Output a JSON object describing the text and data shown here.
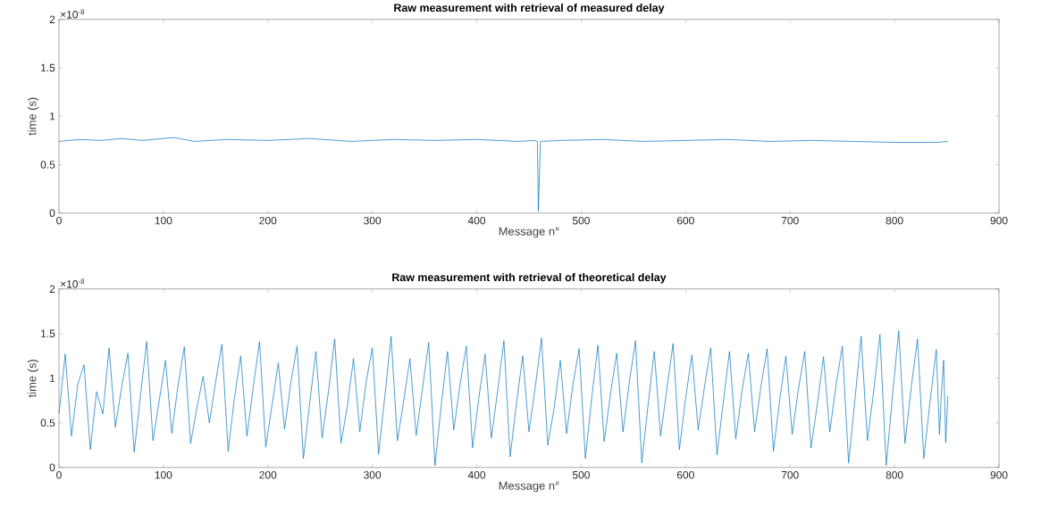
{
  "chart_data": [
    {
      "type": "line",
      "title": "Raw measurement with retrieval of measured delay",
      "xlabel": "Message n°",
      "ylabel": "time (s)",
      "annotations": [
        "×10$^{-8}$"
      ],
      "x": [
        0,
        20,
        40,
        60,
        80,
        110,
        130,
        160,
        200,
        240,
        280,
        320,
        360,
        400,
        440,
        455,
        458,
        459,
        461,
        480,
        520,
        560,
        600,
        640,
        680,
        720,
        760,
        800,
        840,
        851
      ],
      "series": [
        {
          "color": "#0072bd",
          "values": [
            0.74,
            0.76,
            0.75,
            0.77,
            0.75,
            0.78,
            0.74,
            0.76,
            0.75,
            0.77,
            0.74,
            0.76,
            0.75,
            0.76,
            0.74,
            0.75,
            0.74,
            0.02,
            0.74,
            0.75,
            0.76,
            0.74,
            0.75,
            0.76,
            0.74,
            0.75,
            0.74,
            0.73,
            0.73,
            0.74
          ]
        }
      ],
      "xlim": [
        0,
        900
      ],
      "xticks": [
        0,
        100,
        200,
        300,
        400,
        500,
        600,
        700,
        800,
        900
      ],
      "ylim": [
        0,
        2
      ],
      "yticks": [
        0,
        0.5,
        1,
        1.5,
        2
      ]
    },
    {
      "type": "line",
      "title": "Raw measurement with retrieval of theoretical delay",
      "xlabel": "Message n°",
      "ylabel": "time (s)",
      "annotations": [
        "×10$^{-8}$"
      ],
      "x": [
        0,
        6,
        12,
        18,
        24,
        30,
        36,
        42,
        48,
        54,
        60,
        66,
        72,
        78,
        84,
        90,
        96,
        102,
        108,
        114,
        120,
        126,
        132,
        138,
        144,
        150,
        156,
        162,
        168,
        174,
        180,
        186,
        192,
        198,
        204,
        210,
        216,
        222,
        228,
        234,
        240,
        246,
        252,
        258,
        264,
        270,
        276,
        282,
        288,
        294,
        300,
        306,
        312,
        318,
        324,
        330,
        336,
        342,
        348,
        354,
        360,
        366,
        372,
        378,
        384,
        390,
        396,
        402,
        408,
        414,
        420,
        426,
        432,
        438,
        444,
        450,
        456,
        462,
        468,
        474,
        480,
        486,
        492,
        498,
        504,
        510,
        516,
        522,
        528,
        534,
        540,
        546,
        552,
        558,
        564,
        570,
        576,
        582,
        588,
        594,
        600,
        606,
        612,
        618,
        624,
        630,
        636,
        642,
        648,
        654,
        660,
        666,
        672,
        678,
        684,
        690,
        696,
        702,
        708,
        714,
        720,
        726,
        732,
        738,
        744,
        750,
        756,
        762,
        768,
        774,
        780,
        786,
        792,
        798,
        804,
        810,
        816,
        822,
        828,
        834,
        840,
        843,
        845,
        847,
        849,
        851
      ],
      "series": [
        {
          "color": "#0072bd",
          "values": [
            0.6,
            1.27,
            0.35,
            0.93,
            1.15,
            0.2,
            0.85,
            0.6,
            1.34,
            0.45,
            0.9,
            1.28,
            0.17,
            0.8,
            1.41,
            0.3,
            0.75,
            1.2,
            0.38,
            0.92,
            1.35,
            0.27,
            0.66,
            1.02,
            0.5,
            0.96,
            1.38,
            0.18,
            0.78,
            1.25,
            0.35,
            0.9,
            1.41,
            0.23,
            0.7,
            1.17,
            0.43,
            0.95,
            1.36,
            0.1,
            0.72,
            1.3,
            0.33,
            0.85,
            1.44,
            0.27,
            0.68,
            1.22,
            0.4,
            0.95,
            1.34,
            0.15,
            0.8,
            1.47,
            0.3,
            0.74,
            1.22,
            0.36,
            0.88,
            1.4,
            0.02,
            0.7,
            1.3,
            0.42,
            0.93,
            1.36,
            0.22,
            0.78,
            1.27,
            0.33,
            0.86,
            1.42,
            0.12,
            0.72,
            1.25,
            0.4,
            0.9,
            1.45,
            0.25,
            0.66,
            1.2,
            0.38,
            0.92,
            1.33,
            0.1,
            0.77,
            1.37,
            0.29,
            0.82,
            1.28,
            0.4,
            0.95,
            1.42,
            0.05,
            0.7,
            1.3,
            0.35,
            0.88,
            1.39,
            0.2,
            0.78,
            1.26,
            0.42,
            0.9,
            1.34,
            0.14,
            0.73,
            1.3,
            0.32,
            0.86,
            1.28,
            0.4,
            0.9,
            1.33,
            0.18,
            0.75,
            1.25,
            0.37,
            0.88,
            1.3,
            0.22,
            0.7,
            1.24,
            0.4,
            0.92,
            1.36,
            0.05,
            0.75,
            1.47,
            0.3,
            0.85,
            1.49,
            0.02,
            0.8,
            1.53,
            0.27,
            0.9,
            1.44,
            0.1,
            0.74,
            1.32,
            0.37,
            0.85,
            1.2,
            0.28,
            0.8
          ]
        }
      ],
      "xlim": [
        0,
        900
      ],
      "xticks": [
        0,
        100,
        200,
        300,
        400,
        500,
        600,
        700,
        800,
        900
      ],
      "ylim": [
        0,
        2
      ],
      "yticks": [
        0,
        0.5,
        1,
        1.5,
        2
      ]
    }
  ]
}
